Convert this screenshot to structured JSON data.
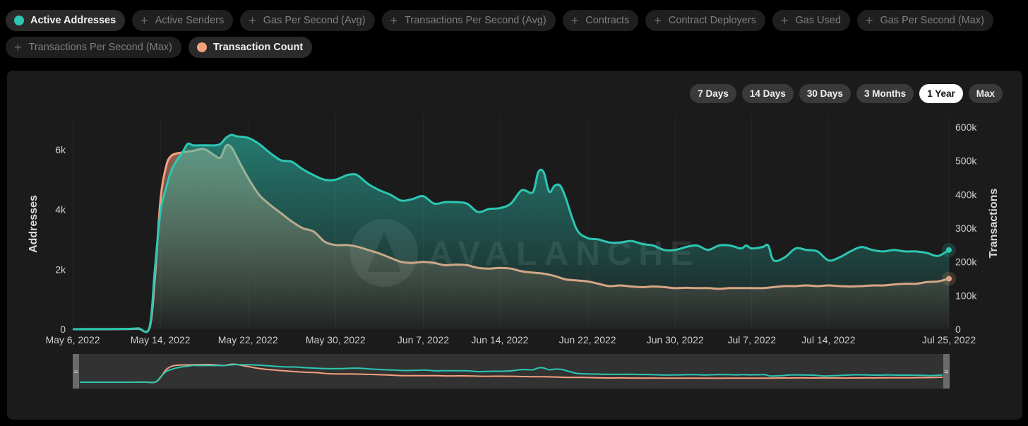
{
  "metric_chips": [
    {
      "label": "Active Addresses",
      "active": true,
      "color": "#2cc7b3"
    },
    {
      "label": "Active Senders",
      "active": false
    },
    {
      "label": "Gas Per Second (Avg)",
      "active": false
    },
    {
      "label": "Transactions Per Second (Avg)",
      "active": false
    },
    {
      "label": "Contracts",
      "active": false
    },
    {
      "label": "Contract Deployers",
      "active": false
    },
    {
      "label": "Gas Used",
      "active": false
    },
    {
      "label": "Gas Per Second (Max)",
      "active": false
    },
    {
      "label": "Transactions Per Second (Max)",
      "active": false
    },
    {
      "label": "Transaction Count",
      "active": true,
      "color": "#f5a07d"
    }
  ],
  "time_ranges": [
    {
      "label": "7 Days",
      "selected": false
    },
    {
      "label": "14 Days",
      "selected": false
    },
    {
      "label": "30 Days",
      "selected": false
    },
    {
      "label": "3 Months",
      "selected": false
    },
    {
      "label": "1 Year",
      "selected": true
    },
    {
      "label": "Max",
      "selected": false
    }
  ],
  "watermark": "AVALANCHE",
  "colors": {
    "addresses": "#2cc7b3",
    "transactions": "#f5a07d"
  },
  "chart_data": {
    "type": "area",
    "x_start_date": "2022-05-06",
    "x_end_date": "2022-07-25",
    "x_tick_labels": [
      "May 6, 2022",
      "May 14, 2022",
      "May 22, 2022",
      "May 30, 2022",
      "Jun 7, 2022",
      "Jun 14, 2022",
      "Jun 22, 2022",
      "Jun 30, 2022",
      "Jul 7, 2022",
      "Jul 14, 2022",
      "Jul 25, 2022"
    ],
    "x_tick_days": [
      0,
      8,
      16,
      24,
      32,
      39,
      47,
      55,
      62,
      69,
      80
    ],
    "ylabel_left": "Addresses",
    "ylabel_right": "Transactions",
    "yticks_left": [
      {
        "v": 0,
        "label": "0"
      },
      {
        "v": 2000,
        "label": "2k"
      },
      {
        "v": 4000,
        "label": "4k"
      },
      {
        "v": 6000,
        "label": "6k"
      }
    ],
    "yticks_right": [
      {
        "v": 0,
        "label": "0"
      },
      {
        "v": 100000,
        "label": "100k"
      },
      {
        "v": 200000,
        "label": "200k"
      },
      {
        "v": 300000,
        "label": "300k"
      },
      {
        "v": 400000,
        "label": "400k"
      },
      {
        "v": 500000,
        "label": "500k"
      },
      {
        "v": 600000,
        "label": "600k"
      }
    ],
    "ylim_left": [
      0,
      7300
    ],
    "ylim_right": [
      0,
      600000
    ],
    "series": [
      {
        "name": "Active Addresses",
        "axis": "left",
        "color": "#2cc7b3",
        "points": [
          [
            0,
            0
          ],
          [
            1,
            5
          ],
          [
            2,
            5
          ],
          [
            3,
            5
          ],
          [
            4,
            8
          ],
          [
            5,
            10
          ],
          [
            6,
            30
          ],
          [
            7,
            60
          ],
          [
            7.5,
            2000
          ],
          [
            8,
            3900
          ],
          [
            8.5,
            4700
          ],
          [
            9,
            5300
          ],
          [
            9.5,
            5650
          ],
          [
            10,
            5900
          ],
          [
            10.5,
            6200
          ],
          [
            11,
            6150
          ],
          [
            12,
            6150
          ],
          [
            13,
            6150
          ],
          [
            13.5,
            6200
          ],
          [
            14,
            6400
          ],
          [
            14.5,
            6500
          ],
          [
            15,
            6450
          ],
          [
            16,
            6400
          ],
          [
            17,
            6200
          ],
          [
            18,
            5900
          ],
          [
            19,
            5650
          ],
          [
            20,
            5600
          ],
          [
            21,
            5350
          ],
          [
            22,
            5150
          ],
          [
            23,
            5000
          ],
          [
            24,
            5000
          ],
          [
            25,
            5150
          ],
          [
            25.5,
            5180
          ],
          [
            26,
            5150
          ],
          [
            27,
            4850
          ],
          [
            28,
            4650
          ],
          [
            29,
            4500
          ],
          [
            30,
            4300
          ],
          [
            31,
            4350
          ],
          [
            32,
            4450
          ],
          [
            33,
            4200
          ],
          [
            34,
            4250
          ],
          [
            35,
            4250
          ],
          [
            36,
            4200
          ],
          [
            37,
            3920
          ],
          [
            38,
            4020
          ],
          [
            39,
            4050
          ],
          [
            40,
            4200
          ],
          [
            41,
            4650
          ],
          [
            42,
            4580
          ],
          [
            42.5,
            5250
          ],
          [
            43,
            5250
          ],
          [
            43.5,
            4600
          ],
          [
            44,
            4800
          ],
          [
            44.5,
            4800
          ],
          [
            45,
            4400
          ],
          [
            46,
            3350
          ],
          [
            47,
            3050
          ],
          [
            48,
            3000
          ],
          [
            49,
            2900
          ],
          [
            50,
            2900
          ],
          [
            51,
            2950
          ],
          [
            52,
            2850
          ],
          [
            53,
            2800
          ],
          [
            54,
            2650
          ],
          [
            55,
            2650
          ],
          [
            56,
            2750
          ],
          [
            57,
            2800
          ],
          [
            58,
            2650
          ],
          [
            59,
            2800
          ],
          [
            60,
            2800
          ],
          [
            61,
            2700
          ],
          [
            61.5,
            2800
          ],
          [
            62,
            2700
          ],
          [
            63,
            2750
          ],
          [
            63.5,
            2800
          ],
          [
            64,
            2300
          ],
          [
            65,
            2400
          ],
          [
            66,
            2700
          ],
          [
            67,
            2650
          ],
          [
            68,
            2600
          ],
          [
            69,
            2300
          ],
          [
            70,
            2400
          ],
          [
            71,
            2600
          ],
          [
            72,
            2750
          ],
          [
            73,
            2650
          ],
          [
            74,
            2600
          ],
          [
            75,
            2650
          ],
          [
            76,
            2600
          ],
          [
            77,
            2600
          ],
          [
            78,
            2550
          ],
          [
            79,
            2450
          ],
          [
            80,
            2650
          ]
        ]
      },
      {
        "name": "Transaction Count",
        "axis": "right",
        "color": "#f5a07d",
        "points": [
          [
            0,
            0
          ],
          [
            1,
            0
          ],
          [
            2,
            0
          ],
          [
            3,
            0
          ],
          [
            4,
            300
          ],
          [
            5,
            600
          ],
          [
            6,
            1500
          ],
          [
            7,
            3000
          ],
          [
            7.5,
            150000
          ],
          [
            8,
            380000
          ],
          [
            8.5,
            480000
          ],
          [
            9,
            515000
          ],
          [
            10,
            525000
          ],
          [
            11,
            530000
          ],
          [
            12,
            535000
          ],
          [
            13,
            515000
          ],
          [
            13.5,
            510000
          ],
          [
            14,
            545000
          ],
          [
            14.5,
            540000
          ],
          [
            15,
            510000
          ],
          [
            16,
            450000
          ],
          [
            17,
            400000
          ],
          [
            18,
            370000
          ],
          [
            19,
            345000
          ],
          [
            20,
            320000
          ],
          [
            21,
            300000
          ],
          [
            22,
            290000
          ],
          [
            23,
            260000
          ],
          [
            24,
            250000
          ],
          [
            25,
            250000
          ],
          [
            26,
            245000
          ],
          [
            27,
            235000
          ],
          [
            28,
            225000
          ],
          [
            29,
            212000
          ],
          [
            30,
            200000
          ],
          [
            31,
            197000
          ],
          [
            32,
            200000
          ],
          [
            33,
            197000
          ],
          [
            34,
            190000
          ],
          [
            35,
            192000
          ],
          [
            36,
            190000
          ],
          [
            37,
            182000
          ],
          [
            38,
            180000
          ],
          [
            39,
            182000
          ],
          [
            40,
            180000
          ],
          [
            41,
            172000
          ],
          [
            42,
            168000
          ],
          [
            43,
            165000
          ],
          [
            44,
            158000
          ],
          [
            45,
            148000
          ],
          [
            46,
            145000
          ],
          [
            47,
            142000
          ],
          [
            48,
            135000
          ],
          [
            49,
            128000
          ],
          [
            50,
            130000
          ],
          [
            51,
            127000
          ],
          [
            52,
            125000
          ],
          [
            53,
            127000
          ],
          [
            54,
            125000
          ],
          [
            55,
            122000
          ],
          [
            56,
            123000
          ],
          [
            57,
            122000
          ],
          [
            58,
            122000
          ],
          [
            59,
            120000
          ],
          [
            60,
            122000
          ],
          [
            61,
            122000
          ],
          [
            62,
            122000
          ],
          [
            63,
            122000
          ],
          [
            64,
            125000
          ],
          [
            65,
            128000
          ],
          [
            66,
            128000
          ],
          [
            67,
            130000
          ],
          [
            68,
            128000
          ],
          [
            69,
            130000
          ],
          [
            70,
            128000
          ],
          [
            71,
            127000
          ],
          [
            72,
            128000
          ],
          [
            73,
            130000
          ],
          [
            74,
            130000
          ],
          [
            75,
            133000
          ],
          [
            76,
            135000
          ],
          [
            77,
            135000
          ],
          [
            78,
            140000
          ],
          [
            79,
            142000
          ],
          [
            80,
            150000
          ]
        ]
      }
    ]
  }
}
